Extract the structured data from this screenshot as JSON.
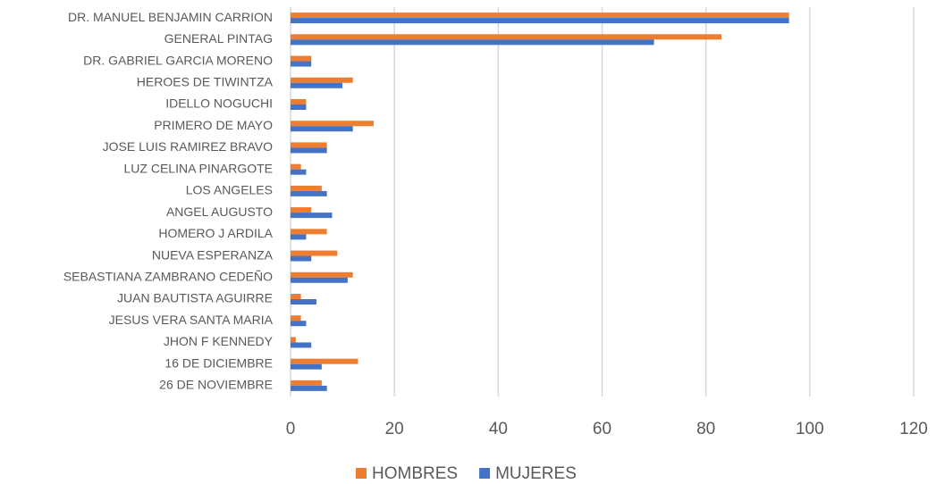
{
  "chart_data": {
    "type": "bar",
    "orientation": "horizontal",
    "categories": [
      "DR. MANUEL BENJAMIN CARRION",
      "GENERAL PINTAG",
      "DR. GABRIEL GARCIA MORENO",
      "HEROES DE TIWINTZA",
      "IDELLO NOGUCHI",
      "PRIMERO DE MAYO",
      "JOSE LUIS RAMIREZ BRAVO",
      "LUZ CELINA PINARGOTE",
      "LOS ANGELES",
      "ANGEL AUGUSTO",
      "HOMERO J ARDILA",
      "NUEVA ESPERANZA",
      "SEBASTIANA ZAMBRANO CEDEÑO",
      "JUAN BAUTISTA AGUIRRE",
      "JESUS VERA SANTA MARIA",
      "JHON F KENNEDY",
      "16 DE DICIEMBRE",
      "26 DE NOVIEMBRE"
    ],
    "series": [
      {
        "name": "HOMBRES",
        "color": "#ed7d31",
        "values": [
          96,
          83,
          4,
          12,
          3,
          16,
          7,
          2,
          6,
          4,
          7,
          9,
          12,
          2,
          2,
          1,
          13,
          6
        ]
      },
      {
        "name": "MUJERES",
        "color": "#4472c4",
        "values": [
          96,
          70,
          4,
          10,
          3,
          12,
          7,
          3,
          7,
          8,
          3,
          4,
          11,
          5,
          3,
          4,
          6,
          7
        ]
      }
    ],
    "xlim": [
      0,
      120
    ],
    "xticks": [
      0,
      20,
      40,
      60,
      80,
      100,
      120
    ],
    "grid": true,
    "legend": "bottom"
  }
}
